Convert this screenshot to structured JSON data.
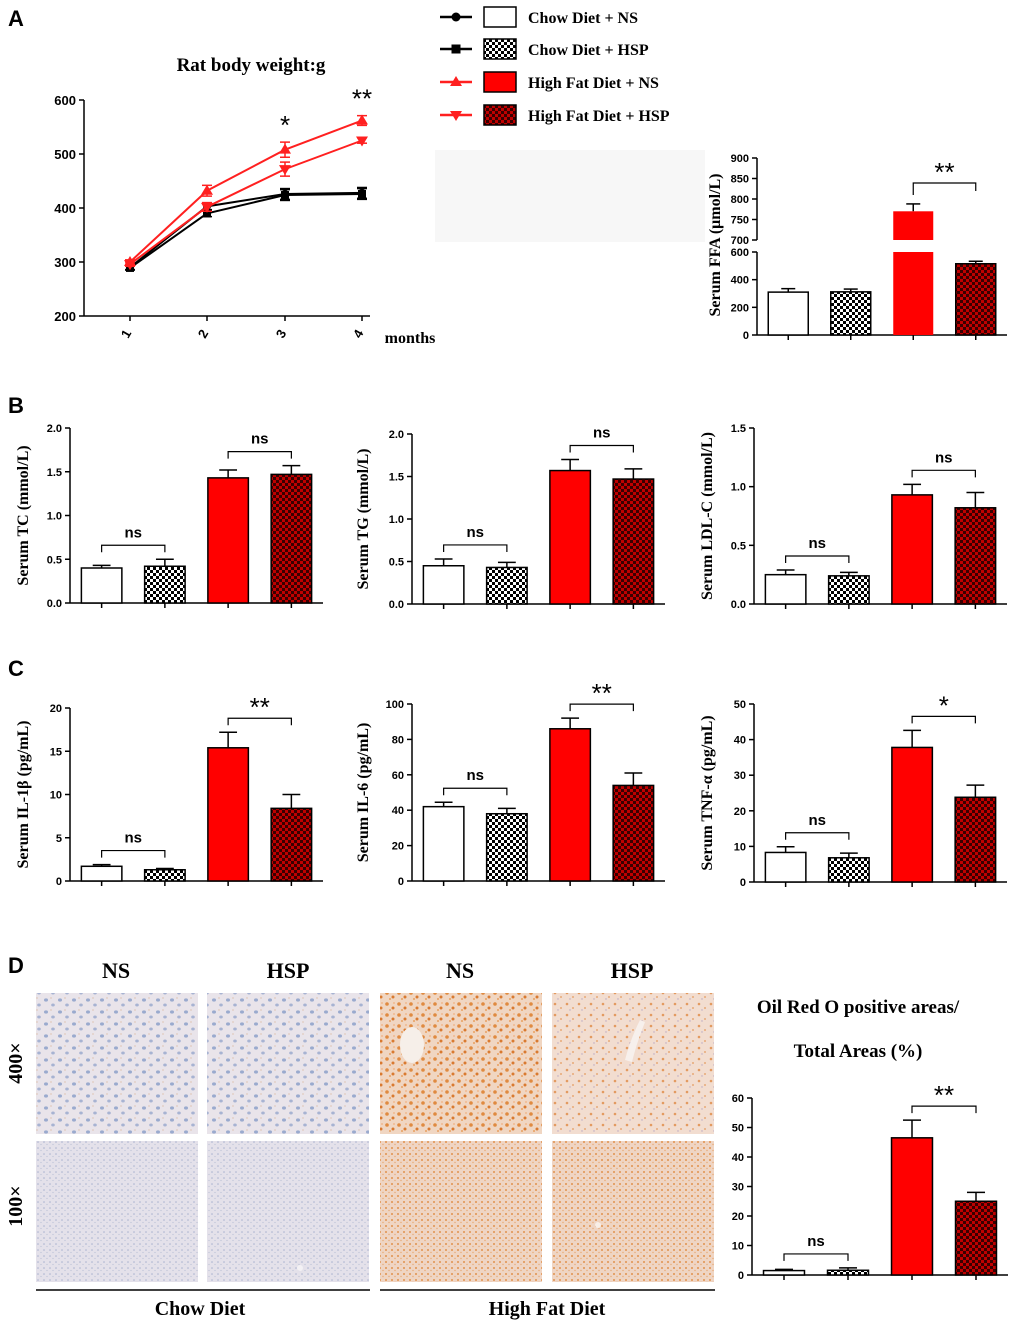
{
  "panels": [
    "A",
    "B",
    "C",
    "D"
  ],
  "legend": [
    {
      "label": "Chow Diet + NS",
      "line_color": "#000000",
      "marker": "circle",
      "fill": "white"
    },
    {
      "label": "Chow Diet + HSP",
      "line_color": "#000000",
      "marker": "square",
      "fill": "checker"
    },
    {
      "label": "High Fat Diet + NS",
      "line_color": "#ff2020",
      "marker": "triangle-up",
      "fill": "red"
    },
    {
      "label": "High Fat Diet + HSP",
      "line_color": "#ff2020",
      "marker": "triangle-down",
      "fill": "redchecker"
    }
  ],
  "colors": {
    "red": "#ff0000",
    "dark_red": "#a00000",
    "line_red": "#ff2020",
    "black": "#000000"
  },
  "chart_data": [
    {
      "id": "weight",
      "type": "line",
      "title": "Rat body weight:g",
      "xlabel": "months",
      "x": [
        "1",
        "2",
        "3",
        "4"
      ],
      "ylim": [
        200,
        600
      ],
      "yticks": [
        200,
        300,
        400,
        500,
        600
      ],
      "series": [
        {
          "name": "Chow Diet + NS",
          "values": [
            290,
            403,
            426,
            428
          ],
          "errors": [
            4,
            6,
            10,
            10
          ]
        },
        {
          "name": "Chow Diet + HSP",
          "values": [
            289,
            390,
            424,
            426
          ],
          "errors": [
            4,
            6,
            10,
            10
          ]
        },
        {
          "name": "High Fat Diet + NS",
          "values": [
            300,
            432,
            508,
            562
          ],
          "errors": [
            4,
            10,
            14,
            9
          ]
        },
        {
          "name": "High Fat Diet + HSP",
          "values": [
            296,
            402,
            472,
            525
          ],
          "errors": [
            4,
            8,
            13,
            5
          ]
        }
      ],
      "annotations": [
        {
          "x": "3",
          "text": "*"
        },
        {
          "x": "4",
          "text": "**"
        }
      ]
    },
    {
      "id": "ffa",
      "type": "bar",
      "broken_axis": true,
      "ylabel": "Serum FFA (μmol/L)",
      "categories": [
        "Chow Diet + NS",
        "Chow Diet + HSP",
        "High Fat Diet + NS",
        "High Fat Diet + HSP"
      ],
      "values": [
        310,
        312,
        770,
        515
      ],
      "errors": [
        25,
        20,
        18,
        18
      ],
      "lower_ylim": [
        0,
        600
      ],
      "lower_yticks": [
        0,
        200,
        400,
        600
      ],
      "upper_ylim": [
        700,
        900
      ],
      "upper_yticks": [
        700,
        750,
        800,
        850,
        900
      ],
      "comparisons": [
        {
          "pair": [
            2,
            3
          ],
          "text": "**"
        }
      ]
    },
    {
      "id": "tc",
      "type": "bar",
      "ylabel": "Serum TC (mmol/L)",
      "categories": [
        "Chow Diet + NS",
        "Chow Diet + HSP",
        "High Fat Diet + NS",
        "High Fat Diet + HSP"
      ],
      "values": [
        0.4,
        0.42,
        1.43,
        1.47
      ],
      "errors": [
        0.03,
        0.08,
        0.09,
        0.1
      ],
      "ylim": [
        0,
        2.0
      ],
      "yticks": [
        "0.0",
        "0.5",
        "1.0",
        "1.5",
        "2.0"
      ],
      "comparisons": [
        {
          "pair": [
            0,
            1
          ],
          "text": "ns"
        },
        {
          "pair": [
            2,
            3
          ],
          "text": "ns"
        }
      ]
    },
    {
      "id": "tg",
      "type": "bar",
      "ylabel": "Serum TG (mmol/L)",
      "categories": [
        "Chow Diet + NS",
        "Chow Diet + HSP",
        "High Fat Diet + NS",
        "High Fat Diet + HSP"
      ],
      "values": [
        0.45,
        0.43,
        1.57,
        1.47
      ],
      "errors": [
        0.08,
        0.06,
        0.13,
        0.12
      ],
      "ylim": [
        0,
        2.0
      ],
      "yticks": [
        "0.0",
        "0.5",
        "1.0",
        "1.5",
        "2.0"
      ],
      "comparisons": [
        {
          "pair": [
            0,
            1
          ],
          "text": "ns"
        },
        {
          "pair": [
            2,
            3
          ],
          "text": "ns"
        }
      ]
    },
    {
      "id": "ldl",
      "type": "bar",
      "ylabel": "Serum LDL-C (mmol/L)",
      "categories": [
        "Chow Diet + NS",
        "Chow Diet + HSP",
        "High Fat Diet + NS",
        "High Fat Diet + HSP"
      ],
      "values": [
        0.25,
        0.24,
        0.93,
        0.82
      ],
      "errors": [
        0.04,
        0.03,
        0.09,
        0.13
      ],
      "ylim": [
        0,
        1.5
      ],
      "yticks": [
        "0.0",
        "0.5",
        "1.0",
        "1.5"
      ],
      "comparisons": [
        {
          "pair": [
            0,
            1
          ],
          "text": "ns"
        },
        {
          "pair": [
            2,
            3
          ],
          "text": "ns"
        }
      ]
    },
    {
      "id": "il1b",
      "type": "bar",
      "ylabel": "Serum IL-1β (pg/mL)",
      "categories": [
        "Chow Diet + NS",
        "Chow Diet + HSP",
        "High Fat Diet + NS",
        "High Fat Diet + HSP"
      ],
      "values": [
        1.7,
        1.3,
        15.4,
        8.4
      ],
      "errors": [
        0.2,
        0.15,
        1.8,
        1.6
      ],
      "ylim": [
        0,
        20
      ],
      "yticks": [
        "0",
        "5",
        "10",
        "15",
        "20"
      ],
      "comparisons": [
        {
          "pair": [
            0,
            1
          ],
          "text": "ns"
        },
        {
          "pair": [
            2,
            3
          ],
          "text": "**"
        }
      ]
    },
    {
      "id": "il6",
      "type": "bar",
      "ylabel": "Serum IL-6 (pg/mL)",
      "categories": [
        "Chow Diet + NS",
        "Chow Diet + HSP",
        "High Fat Diet + NS",
        "High Fat Diet + HSP"
      ],
      "values": [
        42,
        38,
        86,
        54
      ],
      "errors": [
        2.5,
        3,
        6,
        7
      ],
      "ylim": [
        0,
        100
      ],
      "yticks": [
        "0",
        "20",
        "40",
        "60",
        "80",
        "100"
      ],
      "comparisons": [
        {
          "pair": [
            0,
            1
          ],
          "text": "ns"
        },
        {
          "pair": [
            2,
            3
          ],
          "text": "**"
        }
      ]
    },
    {
      "id": "tnf",
      "type": "bar",
      "ylabel": "Serum TNF-α (pg/mL)",
      "categories": [
        "Chow Diet + NS",
        "Chow Diet + HSP",
        "High Fat Diet + NS",
        "High Fat Diet + HSP"
      ],
      "values": [
        8.3,
        6.8,
        37.8,
        23.8
      ],
      "errors": [
        1.6,
        1.3,
        4.8,
        3.4
      ],
      "ylim": [
        0,
        50
      ],
      "yticks": [
        "0",
        "10",
        "20",
        "30",
        "40",
        "50"
      ],
      "comparisons": [
        {
          "pair": [
            0,
            1
          ],
          "text": "ns"
        },
        {
          "pair": [
            2,
            3
          ],
          "text": "*"
        }
      ]
    },
    {
      "id": "oro",
      "type": "bar",
      "title_lines": [
        "Oil Red O positive areas/",
        "Total Areas (%)"
      ],
      "categories": [
        "Chow Diet + NS",
        "Chow Diet + HSP",
        "High Fat Diet + NS",
        "High Fat Diet + HSP"
      ],
      "values": [
        1.5,
        1.6,
        46.5,
        25.0
      ],
      "errors": [
        0.4,
        0.8,
        6.0,
        3.0
      ],
      "ylim": [
        0,
        60
      ],
      "yticks": [
        "0",
        "10",
        "20",
        "30",
        "40",
        "50",
        "60"
      ],
      "comparisons": [
        {
          "pair": [
            0,
            1
          ],
          "text": "ns"
        },
        {
          "pair": [
            2,
            3
          ],
          "text": "**"
        }
      ]
    }
  ],
  "histology": {
    "column_labels": [
      "NS",
      "HSP",
      "NS",
      "HSP"
    ],
    "row_labels": [
      "400×",
      "100×"
    ],
    "group_labels": [
      "Chow Diet",
      "High Fat Diet"
    ]
  }
}
